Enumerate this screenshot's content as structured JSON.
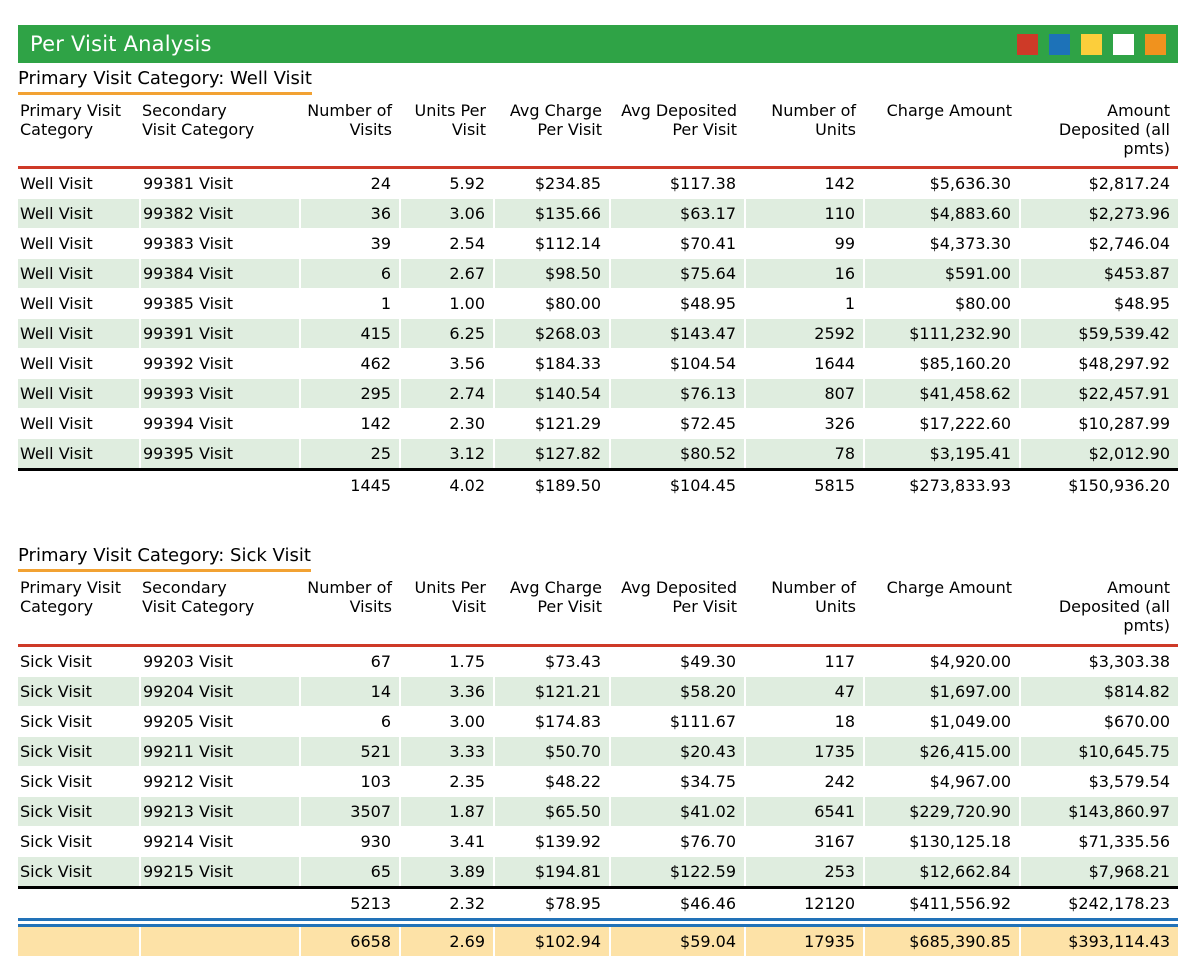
{
  "title_bar": {
    "title": "Per Visit Analysis",
    "square_colors": [
      "#CE3A28",
      "#1D72B8",
      "#FCCE3B",
      "#FFFFFF",
      "#F0921E"
    ]
  },
  "columns": [
    "Primary Visit\nCategory",
    "Secondary\nVisit Category",
    "Number of\nVisits",
    "Units Per\nVisit",
    "Avg Charge\nPer Visit",
    "Avg Deposited\nPer Visit",
    "Number of\nUnits",
    "Charge Amount",
    "Amount\nDeposited (all\npmts)"
  ],
  "sections": [
    {
      "heading": "Primary Visit Category: Well Visit",
      "rows": [
        [
          "Well Visit",
          "99381 Visit",
          "24",
          "5.92",
          "$234.85",
          "$117.38",
          "142",
          "$5,636.30",
          "$2,817.24"
        ],
        [
          "Well Visit",
          "99382 Visit",
          "36",
          "3.06",
          "$135.66",
          "$63.17",
          "110",
          "$4,883.60",
          "$2,273.96"
        ],
        [
          "Well Visit",
          "99383 Visit",
          "39",
          "2.54",
          "$112.14",
          "$70.41",
          "99",
          "$4,373.30",
          "$2,746.04"
        ],
        [
          "Well Visit",
          "99384 Visit",
          "6",
          "2.67",
          "$98.50",
          "$75.64",
          "16",
          "$591.00",
          "$453.87"
        ],
        [
          "Well Visit",
          "99385 Visit",
          "1",
          "1.00",
          "$80.00",
          "$48.95",
          "1",
          "$80.00",
          "$48.95"
        ],
        [
          "Well Visit",
          "99391 Visit",
          "415",
          "6.25",
          "$268.03",
          "$143.47",
          "2592",
          "$111,232.90",
          "$59,539.42"
        ],
        [
          "Well Visit",
          "99392 Visit",
          "462",
          "3.56",
          "$184.33",
          "$104.54",
          "1644",
          "$85,160.20",
          "$48,297.92"
        ],
        [
          "Well Visit",
          "99393 Visit",
          "295",
          "2.74",
          "$140.54",
          "$76.13",
          "807",
          "$41,458.62",
          "$22,457.91"
        ],
        [
          "Well Visit",
          "99394 Visit",
          "142",
          "2.30",
          "$121.29",
          "$72.45",
          "326",
          "$17,222.60",
          "$10,287.99"
        ],
        [
          "Well Visit",
          "99395 Visit",
          "25",
          "3.12",
          "$127.82",
          "$80.52",
          "78",
          "$3,195.41",
          "$2,012.90"
        ]
      ],
      "subtotal": [
        "",
        "",
        "1445",
        "4.02",
        "$189.50",
        "$104.45",
        "5815",
        "$273,833.93",
        "$150,936.20"
      ]
    },
    {
      "heading": "Primary Visit Category: Sick Visit",
      "rows": [
        [
          "Sick Visit",
          "99203 Visit",
          "67",
          "1.75",
          "$73.43",
          "$49.30",
          "117",
          "$4,920.00",
          "$3,303.38"
        ],
        [
          "Sick Visit",
          "99204 Visit",
          "14",
          "3.36",
          "$121.21",
          "$58.20",
          "47",
          "$1,697.00",
          "$814.82"
        ],
        [
          "Sick Visit",
          "99205 Visit",
          "6",
          "3.00",
          "$174.83",
          "$111.67",
          "18",
          "$1,049.00",
          "$670.00"
        ],
        [
          "Sick Visit",
          "99211 Visit",
          "521",
          "3.33",
          "$50.70",
          "$20.43",
          "1735",
          "$26,415.00",
          "$10,645.75"
        ],
        [
          "Sick Visit",
          "99212 Visit",
          "103",
          "2.35",
          "$48.22",
          "$34.75",
          "242",
          "$4,967.00",
          "$3,579.54"
        ],
        [
          "Sick Visit",
          "99213 Visit",
          "3507",
          "1.87",
          "$65.50",
          "$41.02",
          "6541",
          "$229,720.90",
          "$143,860.97"
        ],
        [
          "Sick Visit",
          "99214 Visit",
          "930",
          "3.41",
          "$139.92",
          "$76.70",
          "3167",
          "$130,125.18",
          "$71,335.56"
        ],
        [
          "Sick Visit",
          "99215 Visit",
          "65",
          "3.89",
          "$194.81",
          "$122.59",
          "253",
          "$12,662.84",
          "$7,968.21"
        ]
      ],
      "subtotal": [
        "",
        "",
        "5213",
        "2.32",
        "$78.95",
        "$46.46",
        "12120",
        "$411,556.92",
        "$242,178.23"
      ]
    }
  ],
  "grand_total": [
    "",
    "",
    "6658",
    "2.69",
    "$102.94",
    "$59.04",
    "17935",
    "$685,390.85",
    "$393,114.43"
  ],
  "colors": {
    "header_bar_green": "#2FA346",
    "heading_underline_orange": "#F2A233",
    "header_rule_red": "#CE3A28",
    "row_stripe_green": "#DFEDDF",
    "subtotal_rule_black": "#000000",
    "grand_total_rule_blue": "#2272B8",
    "grand_total_bg": "#FDE2A7"
  }
}
